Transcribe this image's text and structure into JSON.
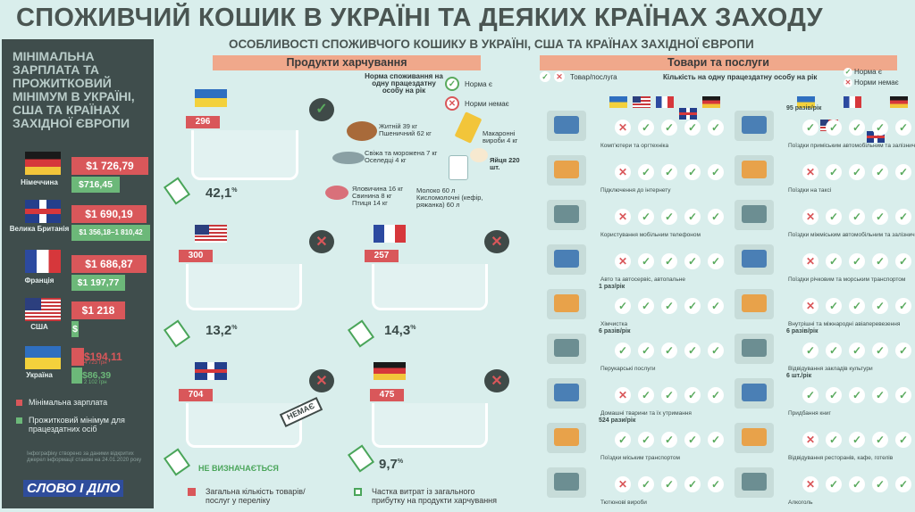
{
  "title": "СПОЖИВЧИЙ КОШИК В УКРАЇНІ ТА ДЕЯКИХ КРАЇНАХ ЗАХОДУ",
  "subtitle": "ОСОБЛИВОСТІ СПОЖИВЧОГО КОШИКУ В УКРАЇНІ, США ТА КРАЇНАХ ЗАХІДНОЇ ЄВРОПИ",
  "sidebar": {
    "title": "МІНІМАЛЬНА ЗАРПЛАТА ТА ПРОЖИТКОВИЙ МІНІМУМ В УКРАЇНІ, США ТА КРАЇНАХ ЗАХІДНОЇ ЄВРОПИ",
    "countries": [
      {
        "name": "Німеччина",
        "min_wage": "$1 726,79",
        "subsistence": "$716,45",
        "flag": "de"
      },
      {
        "name": "Велика Британія",
        "min_wage": "$1 690,19",
        "subsistence": "$1 356,18–1 810,42",
        "flag": "gb"
      },
      {
        "name": "Франція",
        "min_wage": "$1 686,87",
        "subsistence": "$1 197,77",
        "flag": "fr"
      },
      {
        "name": "США",
        "min_wage": "$1 218",
        "subsistence": "$",
        "flag": "us"
      },
      {
        "name": "Україна",
        "min_wage": "$194,11",
        "min_wage_note": "4 723 грн",
        "subsistence": "$86,39",
        "subsistence_note": "2 102 грн",
        "flag": "ua"
      }
    ],
    "legend_min_wage": "Мінімальна зарплата",
    "legend_subsistence": "Прожитковий мінімум для працездатних осіб",
    "note": "Інфографіку створено за даними відкритих джерел інформації станом на 24.01.2020 року",
    "logo": "СЛОВО І ДІЛО"
  },
  "food": {
    "header": "Продукти харчування",
    "norm_label": "Норма споживання на одну працездатну особу на рік",
    "norm_yes": "Норма є",
    "norm_no": "Норми немає",
    "baskets": [
      {
        "flag": "ua",
        "count": "296",
        "pct": "42,1",
        "pct_unit": "%",
        "has_norm": true
      },
      {
        "flag": "us",
        "count": "300",
        "pct": "13,2",
        "pct_unit": "%",
        "has_norm": false
      },
      {
        "flag": "fr",
        "count": "257",
        "pct": "14,3",
        "pct_unit": "%",
        "has_norm": false
      },
      {
        "flag": "gb",
        "count": "704",
        "pct": "НЕ ВИЗНАЧАЄТЬСЯ",
        "pct_unit": "",
        "has_norm": false,
        "stamp": "НЕМАЄ"
      },
      {
        "flag": "de",
        "count": "475",
        "pct": "9,7",
        "pct_unit": "%",
        "has_norm": false
      }
    ],
    "items": {
      "bread": "Житній 39 кг\nПшеничний 62 кг",
      "pasta": "Макаронні вироби 4 кг",
      "fish": "Свіжа та морожена 7 кг\nОселедці 4 кг",
      "eggs": "Яйця 220 шт.",
      "meat": "Яловичина 16 кг\nСвинина 8 кг\nПтиця 14 кг",
      "milk": "Молоко 60 л\nКисломолочні (кефір, ряжанка) 60 л"
    },
    "legend_total": "Загальна кількість товарів/послуг у переліку",
    "legend_share": "Частка витрат із загального прибутку на продукти харчування"
  },
  "goods": {
    "header": "Товари та послуги",
    "legend_item": "Товар/послуга",
    "legend_amount": "Кількість на одну працездатну особу на рік",
    "norm_yes": "Норма є",
    "norm_no": "Норми немає",
    "left": [
      {
        "label": "Комп'ютери та оргтехніка",
        "freq": "",
        "marks": [
          "no",
          "ok",
          "ok",
          "ok",
          "ok"
        ]
      },
      {
        "label": "Підключення до інтернету",
        "freq": "",
        "marks": [
          "no",
          "ok",
          "ok",
          "ok",
          "ok"
        ]
      },
      {
        "label": "Користування мобільним телефоном",
        "freq": "",
        "marks": [
          "no",
          "ok",
          "ok",
          "ok",
          "ok"
        ]
      },
      {
        "label": "Авто та автосервіс, автопальне",
        "freq": "",
        "marks": [
          "no",
          "ok",
          "ok",
          "ok",
          "ok"
        ]
      },
      {
        "label": "Хімчистка",
        "freq": "1 раз/рік",
        "marks": [
          "ok",
          "ok",
          "ok",
          "ok",
          "ok"
        ]
      },
      {
        "label": "Перукарські послуги",
        "freq": "6 разів/рік",
        "marks": [
          "ok",
          "ok",
          "ok",
          "ok",
          "ok"
        ]
      },
      {
        "label": "Домашні тварини та їх утримання",
        "freq": "",
        "marks": [
          "no",
          "ok",
          "ok",
          "ok",
          "ok"
        ]
      },
      {
        "label": "Поїздки міським транспортом",
        "freq": "524 рази/рік",
        "marks": [
          "ok",
          "ok",
          "ok",
          "ok",
          "ok"
        ]
      },
      {
        "label": "Тютюнові вироби",
        "freq": "",
        "marks": [
          "no",
          "ok",
          "ok",
          "ok",
          "ok"
        ]
      }
    ],
    "right": [
      {
        "label": "Поїздки приміським автомобільним та залізничним транспортом",
        "freq": "95 разів/рік",
        "marks": [
          "ok",
          "ok",
          "ok",
          "ok",
          "ok"
        ]
      },
      {
        "label": "Поїздки на таксі",
        "freq": "",
        "marks": [
          "no",
          "ok",
          "ok",
          "ok",
          "ok"
        ]
      },
      {
        "label": "Поїздки міжміським автомобільним та залізничним транспортом",
        "freq": "",
        "marks": [
          "no",
          "ok",
          "ok",
          "ok",
          "ok"
        ]
      },
      {
        "label": "Поїздки річковим та морським транспортом",
        "freq": "",
        "marks": [
          "no",
          "ok",
          "ok",
          "ok",
          "ok"
        ]
      },
      {
        "label": "Внутрішні та міжнародні авіаперевезення",
        "freq": "",
        "marks": [
          "no",
          "ok",
          "ok",
          "ok",
          "ok"
        ]
      },
      {
        "label": "Відвідування закладів культури",
        "freq": "6 разів/рік",
        "marks": [
          "ok",
          "ok",
          "ok",
          "ok",
          "ok"
        ]
      },
      {
        "label": "Придбання книг",
        "freq": "6 шт./рік",
        "marks": [
          "ok",
          "ok",
          "ok",
          "ok",
          "ok"
        ]
      },
      {
        "label": "Відвідування ресторанів, кафе, готелів",
        "freq": "",
        "marks": [
          "no",
          "ok",
          "ok",
          "ok",
          "ok"
        ]
      },
      {
        "label": "Алкоголь",
        "freq": "",
        "marks": [
          "no",
          "ok",
          "ok",
          "ok",
          "ok"
        ]
      }
    ]
  },
  "colors": {
    "red": "#d9575a",
    "green": "#6cb879",
    "peach": "#f0a88b",
    "sidebar": "#3f4d4c",
    "background": "#d9eeec"
  }
}
